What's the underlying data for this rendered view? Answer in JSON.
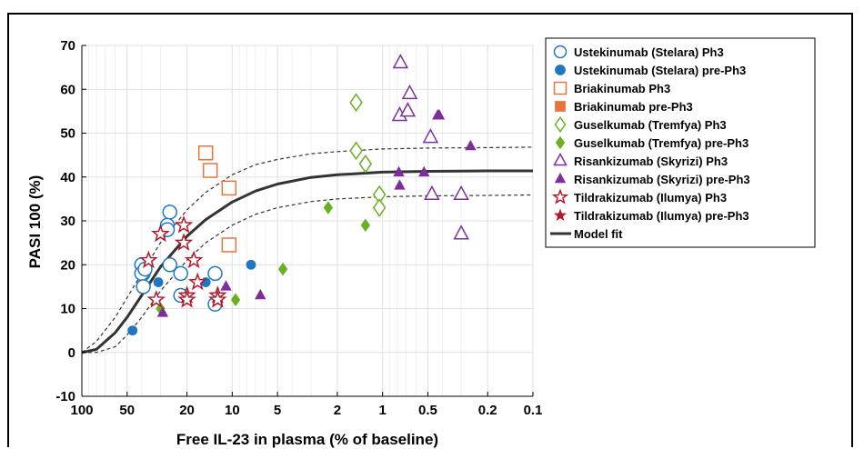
{
  "chart_data": {
    "type": "scatter",
    "xlabel": "Free IL-23 in plasma (% of baseline)",
    "ylabel": "PASI 100 (%)",
    "x_scale": "log",
    "x_reversed": true,
    "xlim": [
      100,
      0.1
    ],
    "ylim": [
      -10,
      70
    ],
    "x_ticks": [
      100,
      50,
      20,
      10,
      5,
      2,
      1,
      0.5,
      0.2,
      0.1
    ],
    "x_tick_labels": [
      "100",
      "50",
      "20",
      "10",
      "5",
      "2",
      "1",
      "0.5",
      "0.2",
      "0.1"
    ],
    "y_ticks": [
      -10,
      0,
      10,
      20,
      30,
      40,
      50,
      60,
      70
    ],
    "y_tick_labels": [
      "-10",
      "0",
      "10",
      "20",
      "30",
      "40",
      "50",
      "60",
      "70"
    ],
    "grid": true,
    "legend_position": "right",
    "series": [
      {
        "name": "Ustekinumab (Stelara) Ph3",
        "marker": "circle-open",
        "color": "#1f77c4",
        "x": [
          40,
          39,
          40,
          39,
          38,
          26,
          27,
          27,
          26,
          22,
          22,
          13,
          13
        ],
        "y": [
          20,
          18,
          18,
          15,
          19,
          32,
          29,
          28,
          20,
          18,
          13,
          18,
          11
        ]
      },
      {
        "name": "Ustekinumab (Stelara) pre-Ph3",
        "marker": "circle-filled",
        "color": "#1f77c4",
        "x": [
          46,
          31,
          15,
          7.5
        ],
        "y": [
          5,
          16,
          16,
          20
        ]
      },
      {
        "name": "Briakinumab Ph3",
        "marker": "square-open",
        "color": "#e8743b",
        "x": [
          15,
          14,
          10.5,
          10.5
        ],
        "y": [
          45.5,
          41.5,
          37.5,
          24.5
        ]
      },
      {
        "name": "Briakinumab pre-Ph3",
        "marker": "square-filled",
        "color": "#e8743b",
        "x": [],
        "y": []
      },
      {
        "name": "Guselkumab (Tremfya) Ph3",
        "marker": "diamond-open",
        "color": "#6ab023",
        "x": [
          1.5,
          1.5,
          1.3,
          1.05,
          1.05
        ],
        "y": [
          57,
          46,
          43,
          36,
          33
        ]
      },
      {
        "name": "Guselkumab (Tremfya) pre-Ph3",
        "marker": "diamond-filled",
        "color": "#6ab023",
        "x": [
          30,
          9.5,
          4.6,
          2.3,
          1.3
        ],
        "y": [
          10,
          12,
          19,
          33,
          29
        ]
      },
      {
        "name": "Risankizumab (Skyrizi) Ph3",
        "marker": "triangle-open",
        "color": "#7e2d9a",
        "x": [
          0.76,
          0.66,
          0.77,
          0.68,
          0.48,
          0.47,
          0.3,
          0.3
        ],
        "y": [
          66,
          59,
          54,
          55,
          49,
          36,
          36,
          27
        ]
      },
      {
        "name": "Risankizumab (Skyrizi) pre-Ph3",
        "marker": "triangle-filled",
        "color": "#7e2d9a",
        "x": [
          29,
          11,
          6.5,
          0.78,
          0.77,
          0.53,
          0.43,
          0.42,
          0.26
        ],
        "y": [
          9,
          15,
          13,
          41,
          38,
          41,
          54,
          54,
          47
        ]
      },
      {
        "name": "Tildrakizumab (Ilumya) Ph3",
        "marker": "star-open",
        "color": "#b2182b",
        "x": [
          36,
          30,
          21,
          21,
          32,
          20,
          20,
          17,
          18,
          12.5,
          12.5
        ],
        "y": [
          21,
          27,
          29,
          25,
          12,
          13,
          12,
          16,
          21,
          13,
          12
        ]
      },
      {
        "name": "Tildrakizumab (Ilumya) pre-Ph3",
        "marker": "star-filled",
        "color": "#b2182b",
        "x": [],
        "y": []
      },
      {
        "name": "Model fit",
        "type": "line",
        "color": "#333333",
        "x": [
          100,
          80,
          60,
          50,
          40,
          30,
          20,
          15,
          10,
          7,
          5,
          3,
          2,
          1,
          0.5,
          0.2,
          0.1
        ],
        "y": [
          0,
          0.7,
          4.5,
          8,
          13,
          19.5,
          26.5,
          30.3,
          34.3,
          36.8,
          38.4,
          39.9,
          40.5,
          41.1,
          41.3,
          41.4,
          41.4
        ]
      },
      {
        "name": "",
        "type": "line",
        "style": "dashed",
        "color": "#333333",
        "x": [
          100,
          80,
          60,
          50,
          40,
          30,
          20,
          15,
          10,
          7,
          5,
          3,
          2,
          1,
          0.5,
          0.2,
          0.1
        ],
        "y": [
          0,
          2.5,
          8,
          12.5,
          18,
          25,
          32.5,
          36.5,
          40.5,
          42.8,
          44,
          45.3,
          45.8,
          46.4,
          46.6,
          46.7,
          46.8
        ]
      },
      {
        "name": "",
        "type": "line",
        "style": "dashed",
        "color": "#333333",
        "x": [
          100,
          80,
          60,
          50,
          40,
          30,
          20,
          15,
          10,
          7,
          5,
          3,
          2,
          1,
          0.5,
          0.2,
          0.1
        ],
        "y": [
          0,
          0,
          1.3,
          4,
          8,
          14,
          21,
          25,
          29,
          31.5,
          33,
          34.4,
          35,
          35.5,
          35.7,
          35.8,
          35.9
        ]
      }
    ]
  }
}
